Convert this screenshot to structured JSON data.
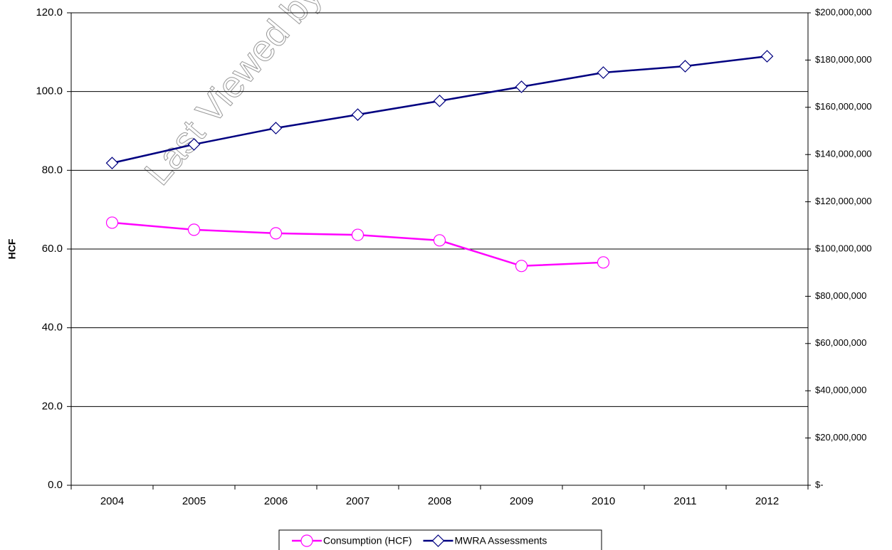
{
  "chart_data": {
    "type": "line",
    "y_label": "HCF",
    "watermark": "Last Viewed by",
    "categories": [
      "2004",
      "2005",
      "2006",
      "2007",
      "2008",
      "2009",
      "2010",
      "2011",
      "2012"
    ],
    "series": [
      {
        "name": "Consumption (HCF)",
        "color": "#ff00ff",
        "marker": "circle",
        "values": [
          66.7,
          64.9,
          64.0,
          63.6,
          62.2,
          55.7,
          56.6,
          null,
          null
        ]
      },
      {
        "name": "MWRA Assessments",
        "color": "#000080",
        "marker": "diamond",
        "axis": "y2",
        "values": [
          136400000,
          144300000,
          151200000,
          156900000,
          162700000,
          168700000,
          174700000,
          177400000,
          181600000
        ]
      }
    ],
    "ylim": [
      0,
      120
    ],
    "yticks": [
      {
        "value": 0,
        "label": "0.0"
      },
      {
        "value": 20,
        "label": "20.0"
      },
      {
        "value": 40,
        "label": "40.0"
      },
      {
        "value": 60,
        "label": "60.0"
      },
      {
        "value": 80,
        "label": "80.0"
      },
      {
        "value": 100,
        "label": "100.0"
      },
      {
        "value": 120,
        "label": "120.0"
      }
    ],
    "y2lim": [
      0,
      200000000
    ],
    "y2ticks": [
      {
        "value": 0,
        "label": "$-"
      },
      {
        "value": 20000000,
        "label": "$20,000,000"
      },
      {
        "value": 40000000,
        "label": "$40,000,000"
      },
      {
        "value": 60000000,
        "label": "$60,000,000"
      },
      {
        "value": 80000000,
        "label": "$80,000,000"
      },
      {
        "value": 100000000,
        "label": "$100,000,000"
      },
      {
        "value": 120000000,
        "label": "$120,000,000"
      },
      {
        "value": 140000000,
        "label": "$140,000,000"
      },
      {
        "value": 160000000,
        "label": "$160,000,000"
      },
      {
        "value": 180000000,
        "label": "$180,000,000"
      },
      {
        "value": 200000000,
        "label": "$200,000,000"
      }
    ],
    "grid": true,
    "legend": "bottom"
  }
}
